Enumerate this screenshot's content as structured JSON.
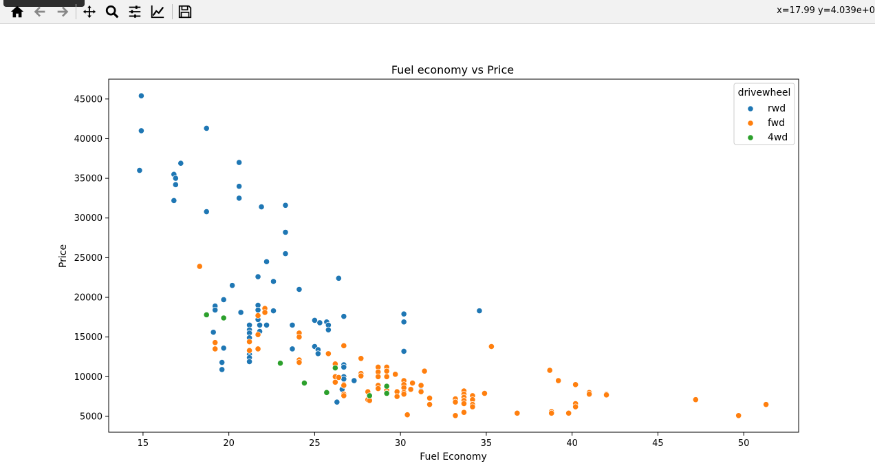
{
  "toolbar": {
    "coords_text": "x=17.99 y=4.039e+0",
    "buttons": [
      {
        "icon": "home-icon"
      },
      {
        "icon": "back-arrow-icon"
      },
      {
        "icon": "forward-arrow-icon"
      },
      {
        "icon": "pan-move-icon"
      },
      {
        "icon": "zoom-magnifier-icon"
      },
      {
        "icon": "configure-subplots-icon"
      },
      {
        "icon": "edit-axis-line-icon"
      },
      {
        "icon": "save-floppy-icon"
      }
    ]
  },
  "colors": {
    "rwd": "#1f77b4",
    "fwd": "#ff7f0e",
    "4wd": "#2ca02c"
  },
  "chart_data": {
    "type": "scatter",
    "title": "Fuel economy vs Price",
    "xlabel": "Fuel Economy",
    "ylabel": "Price",
    "xlim": [
      13,
      53.2
    ],
    "ylim": [
      3000,
      47500
    ],
    "xticks": [
      15,
      20,
      25,
      30,
      35,
      40,
      45,
      50
    ],
    "yticks": [
      5000,
      10000,
      15000,
      20000,
      25000,
      30000,
      35000,
      40000,
      45000
    ],
    "legend": {
      "title": "drivewheel",
      "placement": "top-right",
      "entries": [
        "rwd",
        "fwd",
        "4wd"
      ]
    },
    "grid": false,
    "series": [
      {
        "name": "rwd",
        "points": [
          [
            14.9,
            45400
          ],
          [
            14.9,
            41000
          ],
          [
            14.8,
            36000
          ],
          [
            16.8,
            35500
          ],
          [
            16.9,
            35000
          ],
          [
            16.9,
            34200
          ],
          [
            16.8,
            32200
          ],
          [
            17.2,
            36900
          ],
          [
            18.7,
            41300
          ],
          [
            18.7,
            30800
          ],
          [
            20.6,
            37000
          ],
          [
            20.6,
            34000
          ],
          [
            20.6,
            32500
          ],
          [
            21.9,
            31400
          ],
          [
            23.3,
            31600
          ],
          [
            23.3,
            28200
          ],
          [
            23.3,
            25500
          ],
          [
            22.2,
            24500
          ],
          [
            20.2,
            21500
          ],
          [
            21.7,
            22600
          ],
          [
            22.6,
            22000
          ],
          [
            24.1,
            21000
          ],
          [
            26.4,
            22400
          ],
          [
            19.2,
            18900
          ],
          [
            19.2,
            18400
          ],
          [
            19.7,
            19700
          ],
          [
            20.7,
            18100
          ],
          [
            21.7,
            19000
          ],
          [
            21.7,
            18400
          ],
          [
            21.7,
            17200
          ],
          [
            21.8,
            16500
          ],
          [
            22.2,
            16500
          ],
          [
            22.6,
            18300
          ],
          [
            21.2,
            16500
          ],
          [
            21.2,
            15900
          ],
          [
            21.2,
            15500
          ],
          [
            21.8,
            15700
          ],
          [
            21.2,
            14900
          ],
          [
            21.2,
            12800
          ],
          [
            21.2,
            12400
          ],
          [
            21.2,
            11900
          ],
          [
            19.1,
            15600
          ],
          [
            19.7,
            13600
          ],
          [
            19.6,
            11800
          ],
          [
            19.6,
            10900
          ],
          [
            23.7,
            16500
          ],
          [
            23.7,
            13500
          ],
          [
            25.0,
            17100
          ],
          [
            25.3,
            16800
          ],
          [
            25.7,
            16900
          ],
          [
            25.8,
            16500
          ],
          [
            25.8,
            15900
          ],
          [
            26.7,
            17600
          ],
          [
            25.0,
            13800
          ],
          [
            25.2,
            13400
          ],
          [
            25.2,
            12900
          ],
          [
            26.7,
            11500
          ],
          [
            26.7,
            11200
          ],
          [
            26.7,
            10000
          ],
          [
            26.7,
            9700
          ],
          [
            26.6,
            8400
          ],
          [
            27.3,
            9500
          ],
          [
            26.3,
            6800
          ],
          [
            30.2,
            17900
          ],
          [
            30.2,
            16900
          ],
          [
            30.2,
            13200
          ],
          [
            31.2,
            8200
          ],
          [
            34.6,
            18300
          ]
        ]
      },
      {
        "name": "fwd",
        "points": [
          [
            18.3,
            23900
          ],
          [
            19.2,
            14300
          ],
          [
            19.2,
            13500
          ],
          [
            21.7,
            17700
          ],
          [
            21.7,
            15300
          ],
          [
            21.2,
            14400
          ],
          [
            21.2,
            13300
          ],
          [
            21.7,
            13500
          ],
          [
            22.1,
            18600
          ],
          [
            22.1,
            18100
          ],
          [
            24.1,
            15500
          ],
          [
            24.1,
            15000
          ],
          [
            24.1,
            12100
          ],
          [
            24.1,
            11800
          ],
          [
            25.8,
            12900
          ],
          [
            26.7,
            13900
          ],
          [
            26.2,
            11600
          ],
          [
            26.2,
            10000
          ],
          [
            26.4,
            9900
          ],
          [
            26.2,
            9300
          ],
          [
            26.7,
            9000
          ],
          [
            26.7,
            8900
          ],
          [
            26.7,
            7800
          ],
          [
            26.7,
            7600
          ],
          [
            27.7,
            12300
          ],
          [
            27.7,
            10400
          ],
          [
            27.7,
            10100
          ],
          [
            28.1,
            8100
          ],
          [
            28.1,
            7100
          ],
          [
            28.2,
            7000
          ],
          [
            28.7,
            11200
          ],
          [
            28.7,
            10600
          ],
          [
            28.7,
            10000
          ],
          [
            28.7,
            8900
          ],
          [
            28.7,
            8500
          ],
          [
            29.2,
            11200
          ],
          [
            29.2,
            10700
          ],
          [
            29.2,
            10000
          ],
          [
            29.2,
            8300
          ],
          [
            29.7,
            10300
          ],
          [
            29.8,
            8100
          ],
          [
            29.8,
            7500
          ],
          [
            30.2,
            9500
          ],
          [
            30.2,
            9000
          ],
          [
            30.2,
            8600
          ],
          [
            30.2,
            8000
          ],
          [
            30.2,
            7800
          ],
          [
            30.7,
            9200
          ],
          [
            30.4,
            5200
          ],
          [
            30.6,
            8400
          ],
          [
            31.2,
            8100
          ],
          [
            31.2,
            8900
          ],
          [
            31.4,
            10700
          ],
          [
            31.7,
            7300
          ],
          [
            31.7,
            6500
          ],
          [
            33.2,
            7200
          ],
          [
            33.2,
            6800
          ],
          [
            33.2,
            5100
          ],
          [
            33.7,
            8200
          ],
          [
            33.7,
            7800
          ],
          [
            33.7,
            7400
          ],
          [
            33.7,
            7000
          ],
          [
            33.7,
            6600
          ],
          [
            33.7,
            5500
          ],
          [
            34.2,
            7600
          ],
          [
            34.2,
            7100
          ],
          [
            34.2,
            6500
          ],
          [
            34.2,
            6200
          ],
          [
            34.9,
            7900
          ],
          [
            35.3,
            13800
          ],
          [
            36.8,
            5400
          ],
          [
            38.7,
            10800
          ],
          [
            38.8,
            5600
          ],
          [
            38.8,
            5400
          ],
          [
            39.2,
            9500
          ],
          [
            39.8,
            5400
          ],
          [
            40.2,
            9000
          ],
          [
            40.2,
            6600
          ],
          [
            40.2,
            6200
          ],
          [
            41.0,
            8000
          ],
          [
            41.0,
            7800
          ],
          [
            42.0,
            7800
          ],
          [
            42.0,
            7700
          ],
          [
            47.2,
            7100
          ],
          [
            49.7,
            5100
          ],
          [
            51.3,
            6500
          ]
        ]
      },
      {
        "name": "4wd",
        "points": [
          [
            18.7,
            17800
          ],
          [
            19.7,
            17400
          ],
          [
            23.0,
            11700
          ],
          [
            24.4,
            9200
          ],
          [
            25.7,
            8000
          ],
          [
            26.2,
            11100
          ],
          [
            28.2,
            7600
          ],
          [
            29.2,
            8800
          ],
          [
            29.2,
            7900
          ]
        ]
      }
    ]
  }
}
